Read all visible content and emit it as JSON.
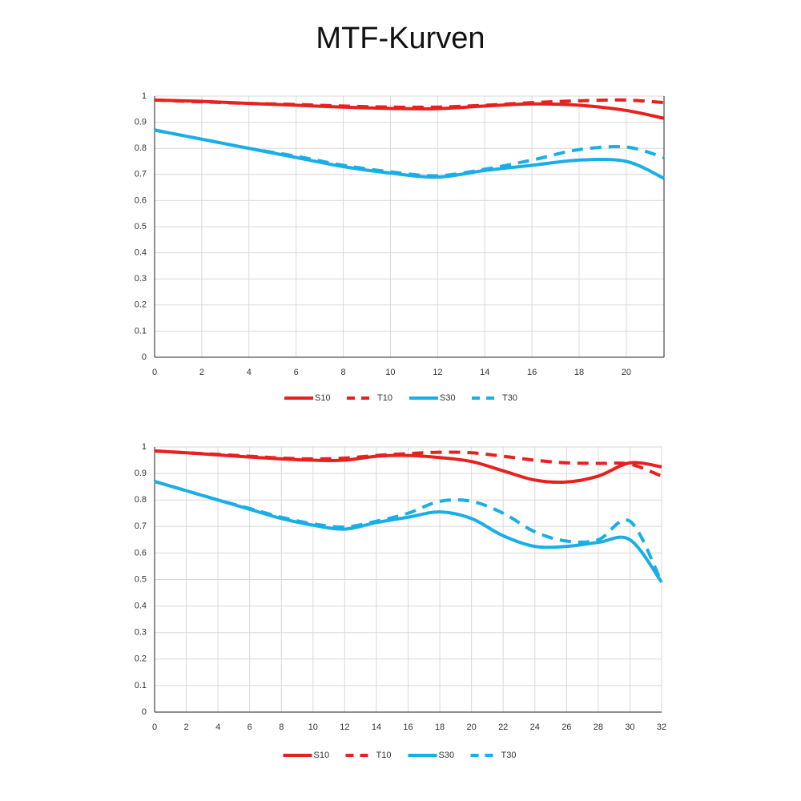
{
  "title": "MTF-Kurven",
  "chart_data": [
    {
      "type": "line",
      "legend": "bottom",
      "grid": true,
      "frame": true,
      "x": [
        0,
        2,
        4,
        6,
        8,
        10,
        12,
        14,
        16,
        18,
        20,
        21.6
      ],
      "xlim": [
        0,
        21.6
      ],
      "xticks": [
        0,
        2,
        4,
        6,
        8,
        10,
        12,
        14,
        16,
        18,
        20
      ],
      "ylim": [
        0,
        1
      ],
      "yticks": [
        0,
        0.1,
        0.2,
        0.3,
        0.4,
        0.5,
        0.6,
        0.7,
        0.8,
        0.9,
        1
      ],
      "series": [
        {
          "name": "S10",
          "color": "#e8201e",
          "style": "solid",
          "values": [
            0.985,
            0.98,
            0.972,
            0.965,
            0.958,
            0.953,
            0.952,
            0.962,
            0.97,
            0.965,
            0.945,
            0.915
          ]
        },
        {
          "name": "T10",
          "color": "#e8201e",
          "style": "dashed",
          "values": [
            0.985,
            0.978,
            0.972,
            0.968,
            0.962,
            0.958,
            0.958,
            0.965,
            0.975,
            0.982,
            0.985,
            0.975
          ]
        },
        {
          "name": "S30",
          "color": "#1aaee6",
          "style": "solid",
          "values": [
            0.87,
            0.835,
            0.8,
            0.765,
            0.73,
            0.705,
            0.69,
            0.715,
            0.735,
            0.755,
            0.75,
            0.685
          ]
        },
        {
          "name": "T30",
          "color": "#1aaee6",
          "style": "dashed",
          "values": [
            0.87,
            0.835,
            0.8,
            0.77,
            0.735,
            0.71,
            0.695,
            0.72,
            0.755,
            0.795,
            0.805,
            0.765
          ]
        }
      ]
    },
    {
      "type": "line",
      "legend": "bottom",
      "grid": true,
      "frame": false,
      "x": [
        0,
        2,
        4,
        6,
        8,
        10,
        12,
        14,
        16,
        18,
        20,
        22,
        24,
        26,
        28,
        30,
        32
      ],
      "xlim": [
        0,
        32
      ],
      "xticks": [
        0,
        2,
        4,
        6,
        8,
        10,
        12,
        14,
        16,
        18,
        20,
        22,
        24,
        26,
        28,
        30,
        32
      ],
      "ylim": [
        0,
        1
      ],
      "yticks": [
        0,
        0.1,
        0.2,
        0.3,
        0.4,
        0.5,
        0.6,
        0.7,
        0.8,
        0.9,
        1
      ],
      "series": [
        {
          "name": "S10",
          "color": "#e8201e",
          "style": "solid",
          "values": [
            0.985,
            0.978,
            0.97,
            0.962,
            0.955,
            0.95,
            0.95,
            0.965,
            0.968,
            0.96,
            0.945,
            0.91,
            0.875,
            0.868,
            0.89,
            0.94,
            0.925
          ]
        },
        {
          "name": "T10",
          "color": "#e8201e",
          "style": "dashed",
          "values": [
            0.985,
            0.978,
            0.972,
            0.965,
            0.958,
            0.955,
            0.958,
            0.968,
            0.975,
            0.98,
            0.978,
            0.965,
            0.95,
            0.94,
            0.938,
            0.935,
            0.89
          ]
        },
        {
          "name": "S30",
          "color": "#1aaee6",
          "style": "solid",
          "values": [
            0.87,
            0.835,
            0.8,
            0.765,
            0.73,
            0.705,
            0.69,
            0.715,
            0.735,
            0.755,
            0.73,
            0.665,
            0.625,
            0.625,
            0.64,
            0.65,
            0.49
          ]
        },
        {
          "name": "T30",
          "color": "#1aaee6",
          "style": "dashed",
          "values": [
            0.87,
            0.835,
            0.8,
            0.768,
            0.735,
            0.71,
            0.698,
            0.72,
            0.75,
            0.795,
            0.795,
            0.75,
            0.68,
            0.645,
            0.65,
            0.72,
            0.49
          ]
        }
      ]
    }
  ]
}
